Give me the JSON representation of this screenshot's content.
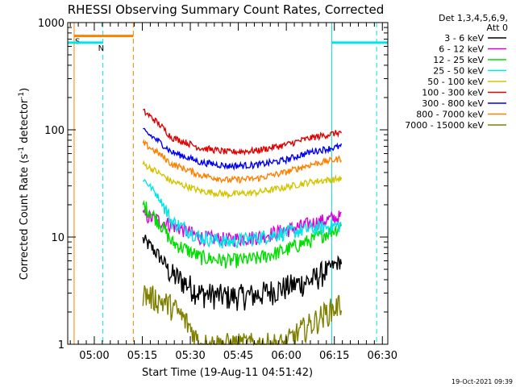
{
  "chart_data": {
    "type": "line",
    "title": "RHESSI Observing Summary Count Rates, Corrected",
    "xlabel": "Start Time (19-Aug-11 04:51:42)",
    "ylabel_main": "Corrected Count Rate (s",
    "ylabel_sup1": "-1",
    "ylabel_mid": " detector",
    "ylabel_sup2": "-1",
    "ylabel_end": ")",
    "x_tick_labels": [
      "05:00",
      "05:15",
      "05:30",
      "05:45",
      "06:00",
      "06:15",
      "06:30"
    ],
    "x_tick_minutes": [
      8.3,
      23.3,
      38.3,
      53.3,
      68.3,
      83.3,
      98.3
    ],
    "x_range_minutes": [
      0,
      100
    ],
    "y_scale": "log",
    "y_range": [
      1,
      1000
    ],
    "y_tick_labels": [
      "1",
      "10",
      "100",
      "1000"
    ],
    "y_tick_values": [
      1,
      10,
      100,
      1000
    ],
    "legend_header": [
      "Det 1,3,4,5,6,9,",
      "Att 0"
    ],
    "legend_placement": "right, outside plot",
    "timestamp": "19-Oct-2021 09:39",
    "data_start_minute": 23.5,
    "data_end_minute": 85.5,
    "series": [
      {
        "name": "3 - 6 keV",
        "color": "#000000",
        "profile": [
          9.5,
          4.5,
          3.0,
          2.8,
          2.9,
          3.4,
          4.0,
          6.0
        ]
      },
      {
        "name": "6 - 12 keV",
        "color": "#dd00dd",
        "profile": [
          16,
          13,
          10,
          9.5,
          10,
          11.5,
          13.5,
          15.5
        ]
      },
      {
        "name": "12 - 25 keV",
        "color": "#00dd00",
        "profile": [
          20,
          9,
          6.5,
          6.0,
          6.3,
          7.5,
          9.5,
          12.5
        ]
      },
      {
        "name": "25 - 50 keV",
        "color": "#00e5e5",
        "profile": [
          35,
          14,
          10,
          9.0,
          9.8,
          11,
          12,
          13
        ]
      },
      {
        "name": "50 - 100 keV",
        "color": "#d4c400",
        "profile": [
          48,
          33,
          27,
          25,
          26,
          29,
          33,
          35
        ]
      },
      {
        "name": "100 - 300 keV",
        "color": "#e00000",
        "profile": [
          150,
          85,
          68,
          62,
          64,
          72,
          85,
          95
        ]
      },
      {
        "name": "300 - 800 keV",
        "color": "#0000ee",
        "profile": [
          98,
          62,
          50,
          46,
          47,
          52,
          63,
          70
        ]
      },
      {
        "name": "800 - 7000 keV",
        "color": "#ff7f00",
        "profile": [
          75,
          48,
          38,
          34,
          35,
          40,
          48,
          54
        ]
      },
      {
        "name": "7000 - 15000 keV",
        "color": "#808000",
        "profile": [
          3.0,
          2.3,
          1.0,
          1.0,
          1.0,
          1.0,
          1.6,
          2.4
        ]
      }
    ],
    "markers": [
      {
        "label": "S",
        "color": "#ff7f00",
        "start_minute": 2.0,
        "end_minute": 20.5,
        "level": 750
      },
      {
        "label": "N",
        "color": "#00e5e5",
        "start_minute": -2.0,
        "end_minute": 11.0,
        "level": 650
      },
      {
        "label": "",
        "color": "#00e5e5",
        "start_minute": 82.5,
        "end_minute": 108.0,
        "level": 650
      }
    ],
    "vertical_lines": [
      {
        "minute": 2.0,
        "color": "#ff7f00",
        "style": "solid"
      },
      {
        "minute": 11.0,
        "color": "#00e5e5",
        "style": "dashed"
      },
      {
        "minute": 20.5,
        "color": "#ff7f00",
        "style": "dashed"
      },
      {
        "minute": 82.5,
        "color": "#00e5e5",
        "style": "solid"
      },
      {
        "minute": 96.5,
        "color": "#00e5e5",
        "style": "dashed"
      }
    ]
  }
}
